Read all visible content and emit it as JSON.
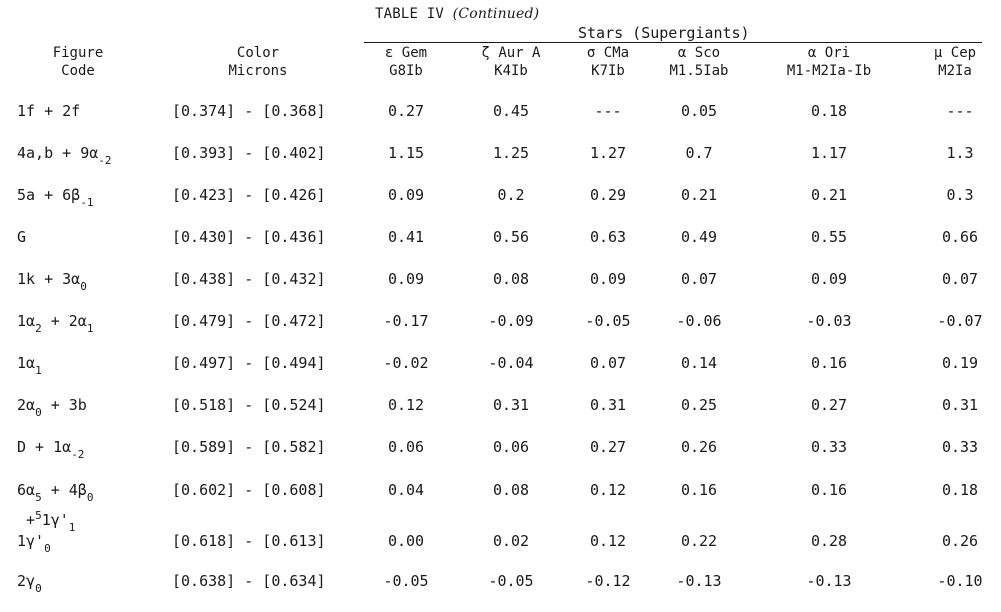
{
  "table": {
    "title": "TABLE IV",
    "title_note": "(Continued)",
    "group_header": "Stars (Supergiants)",
    "headers": {
      "figure_line1": "Figure",
      "figure_line2": "Code",
      "color_line1": "Color",
      "color_line2": "Microns",
      "stars": [
        {
          "name": "ε Gem",
          "type": "G8Ib"
        },
        {
          "name": "ζ Aur A",
          "type": "K4Ib"
        },
        {
          "name": "σ CMa",
          "type": "K7Ib"
        },
        {
          "name": "α Sco",
          "type": "M1.5Iab"
        },
        {
          "name": "α Ori",
          "type": "M1-M2Ia-Ib"
        },
        {
          "name": "μ Cep",
          "type": "M2Ia"
        }
      ]
    },
    "rows": [
      {
        "color": "[0.374] - [0.368]",
        "values": [
          "0.27",
          "0.45",
          "---",
          "0.05",
          "0.18",
          "---"
        ]
      },
      {
        "color": "[0.393] - [0.402]",
        "values": [
          "1.15",
          "1.25",
          "1.27",
          "0.7",
          "1.17",
          "1.3"
        ]
      },
      {
        "color": "[0.423] - [0.426]",
        "values": [
          "0.09",
          "0.2",
          "0.29",
          "0.21",
          "0.21",
          "0.3"
        ]
      },
      {
        "color": "[0.430] - [0.436]",
        "values": [
          "0.41",
          "0.56",
          "0.63",
          "0.49",
          "0.55",
          "0.66"
        ]
      },
      {
        "color": "[0.438] - [0.432]",
        "values": [
          "0.09",
          "0.08",
          "0.09",
          "0.07",
          "0.09",
          "0.07"
        ]
      },
      {
        "color": "[0.479] - [0.472]",
        "values": [
          "-0.17",
          "-0.09",
          "-0.05",
          "-0.06",
          "-0.03",
          "-0.07"
        ]
      },
      {
        "color": "[0.497] - [0.494]",
        "values": [
          "-0.02",
          "-0.04",
          "0.07",
          "0.14",
          "0.16",
          "0.19"
        ]
      },
      {
        "color": "[0.518] - [0.524]",
        "values": [
          "0.12",
          "0.31",
          "0.31",
          "0.25",
          "0.27",
          "0.31"
        ]
      },
      {
        "color": "[0.589] - [0.582]",
        "values": [
          "0.06",
          "0.06",
          "0.27",
          "0.26",
          "0.33",
          "0.33"
        ]
      },
      {
        "color": "[0.602] - [0.608]",
        "values": [
          "0.04",
          "0.08",
          "0.12",
          "0.16",
          "0.16",
          "0.18"
        ]
      },
      {
        "color": "[0.618] - [0.613]",
        "values": [
          "0.00",
          "0.02",
          "0.12",
          "0.22",
          "0.28",
          "0.26"
        ]
      },
      {
        "color": "[0.638] - [0.634]",
        "values": [
          "-0.05",
          "-0.05",
          "-0.12",
          "-0.13",
          "-0.13",
          "-0.10"
        ]
      }
    ]
  }
}
